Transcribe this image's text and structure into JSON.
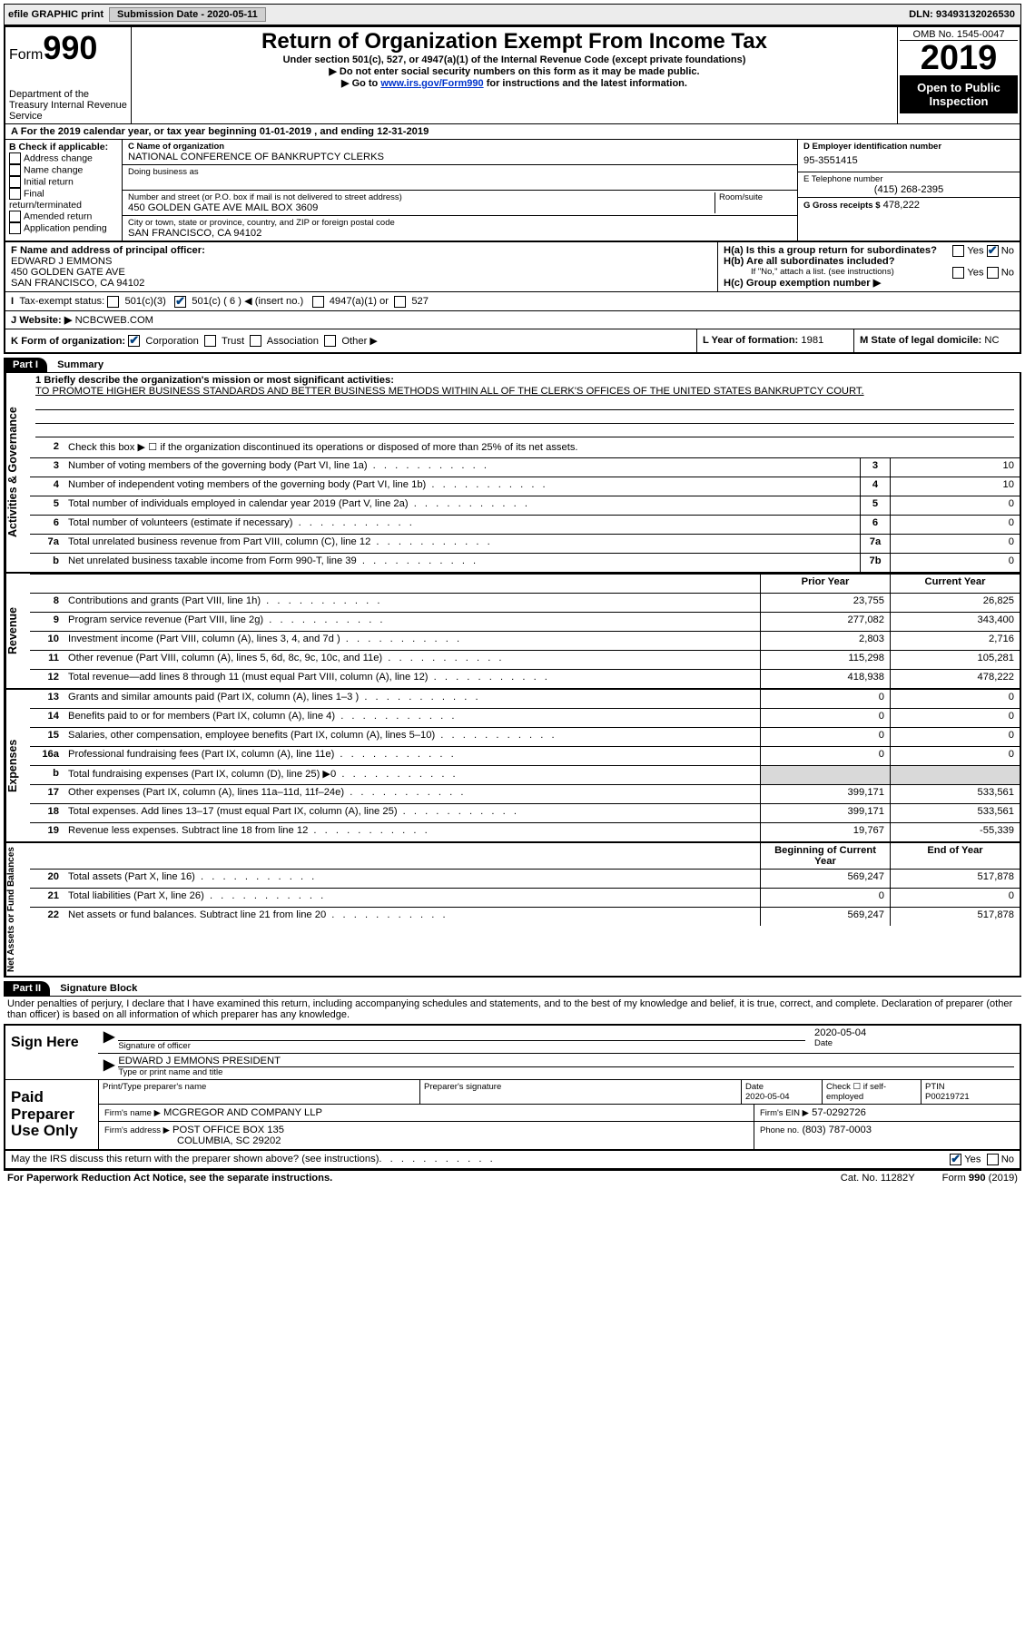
{
  "topbar": {
    "efile": "efile GRAPHIC print",
    "sub_label": "Submission Date",
    "sub_val": "- 2020-05-11",
    "dln": "DLN: 93493132026530"
  },
  "header": {
    "form_word": "Form",
    "form_num": "990",
    "dept": "Department of the Treasury\nInternal Revenue Service",
    "title": "Return of Organization Exempt From Income Tax",
    "sub": "Under section 501(c), 527, or 4947(a)(1) of the Internal Revenue Code (except private foundations)",
    "line2": "▶ Do not enter social security numbers on this form as it may be made public.",
    "line3_pre": "▶ Go to ",
    "line3_link": "www.irs.gov/Form990",
    "line3_post": " for instructions and the latest information.",
    "omb": "OMB No. 1545-0047",
    "year": "2019",
    "open": "Open to Public Inspection"
  },
  "line_a": "For the 2019 calendar year, or tax year beginning 01-01-2019    , and ending 12-31-2019",
  "box_b": {
    "title": "B Check if applicable:",
    "items": [
      "Address change",
      "Name change",
      "Initial return",
      "Final return/terminated",
      "Amended return",
      "Application pending"
    ]
  },
  "box_c": {
    "name_lbl": "C Name of organization",
    "name": "NATIONAL CONFERENCE OF BANKRUPTCY CLERKS",
    "dba_lbl": "Doing business as",
    "addr_lbl": "Number and street (or P.O. box if mail is not delivered to street address)",
    "room_lbl": "Room/suite",
    "addr": "450 GOLDEN GATE AVE MAIL BOX 3609",
    "city_lbl": "City or town, state or province, country, and ZIP or foreign postal code",
    "city": "SAN FRANCISCO, CA  94102"
  },
  "box_d": {
    "ein_lbl": "D Employer identification number",
    "ein": "95-3551415",
    "tel_lbl": "E Telephone number",
    "tel": "(415) 268-2395",
    "gross_lbl": "G Gross receipts $",
    "gross": "478,222"
  },
  "box_f": {
    "lbl": "F Name and address of principal officer:",
    "name": "EDWARD J EMMONS",
    "addr1": "450 GOLDEN GATE AVE",
    "addr2": "SAN FRANCISCO, CA  94102"
  },
  "box_h": {
    "ha": "H(a)  Is this a group return for subordinates?",
    "hb": "H(b)  Are all subordinates included?",
    "hb_note": "If \"No,\" attach a list. (see instructions)",
    "hc": "H(c)  Group exemption number ▶"
  },
  "row_i": {
    "lbl": "Tax-exempt status:",
    "c3": "501(c)(3)",
    "c": "501(c) ( 6 ) ◀ (insert no.)",
    "a1": "4947(a)(1) or",
    "s527": "527"
  },
  "row_j": {
    "lbl": "J   Website: ▶",
    "val": "NCBCWEB.COM"
  },
  "row_k": "K Form of organization:",
  "row_k_items": [
    "Corporation",
    "Trust",
    "Association",
    "Other ▶"
  ],
  "row_l": {
    "lbl": "L Year of formation:",
    "val": "1981"
  },
  "row_m": {
    "lbl": "M State of legal domicile:",
    "val": "NC"
  },
  "part1": {
    "hdr": "Part I",
    "title": "Summary"
  },
  "summary": {
    "line1_lbl": "1  Briefly describe the organization's mission or most significant activities:",
    "mission": "TO PROMOTE HIGHER BUSINESS STANDARDS AND BETTER BUSINESS METHODS WITHIN ALL OF THE CLERK'S OFFICES OF THE UNITED STATES BANKRUPTCY COURT.",
    "line2": "Check this box ▶ ☐ if the organization discontinued its operations or disposed of more than 25% of its net assets.",
    "rows_ag": [
      {
        "n": "3",
        "t": "Number of voting members of the governing body (Part VI, line 1a)",
        "b": "3",
        "v": "10"
      },
      {
        "n": "4",
        "t": "Number of independent voting members of the governing body (Part VI, line 1b)",
        "b": "4",
        "v": "10"
      },
      {
        "n": "5",
        "t": "Total number of individuals employed in calendar year 2019 (Part V, line 2a)",
        "b": "5",
        "v": "0"
      },
      {
        "n": "6",
        "t": "Total number of volunteers (estimate if necessary)",
        "b": "6",
        "v": "0"
      },
      {
        "n": "7a",
        "t": "Total unrelated business revenue from Part VIII, column (C), line 12",
        "b": "7a",
        "v": "0"
      },
      {
        "n": "b",
        "t": "Net unrelated business taxable income from Form 990-T, line 39",
        "b": "7b",
        "v": "0"
      }
    ],
    "col_hdr": {
      "prior": "Prior Year",
      "curr": "Current Year"
    },
    "revenue": [
      {
        "n": "8",
        "t": "Contributions and grants (Part VIII, line 1h)",
        "p": "23,755",
        "c": "26,825"
      },
      {
        "n": "9",
        "t": "Program service revenue (Part VIII, line 2g)",
        "p": "277,082",
        "c": "343,400"
      },
      {
        "n": "10",
        "t": "Investment income (Part VIII, column (A), lines 3, 4, and 7d )",
        "p": "2,803",
        "c": "2,716"
      },
      {
        "n": "11",
        "t": "Other revenue (Part VIII, column (A), lines 5, 6d, 8c, 9c, 10c, and 11e)",
        "p": "115,298",
        "c": "105,281"
      },
      {
        "n": "12",
        "t": "Total revenue—add lines 8 through 11 (must equal Part VIII, column (A), line 12)",
        "p": "418,938",
        "c": "478,222"
      }
    ],
    "expenses": [
      {
        "n": "13",
        "t": "Grants and similar amounts paid (Part IX, column (A), lines 1–3 )",
        "p": "0",
        "c": "0"
      },
      {
        "n": "14",
        "t": "Benefits paid to or for members (Part IX, column (A), line 4)",
        "p": "0",
        "c": "0"
      },
      {
        "n": "15",
        "t": "Salaries, other compensation, employee benefits (Part IX, column (A), lines 5–10)",
        "p": "0",
        "c": "0"
      },
      {
        "n": "16a",
        "t": "Professional fundraising fees (Part IX, column (A), line 11e)",
        "p": "0",
        "c": "0"
      },
      {
        "n": "b",
        "t": "Total fundraising expenses (Part IX, column (D), line 25) ▶0",
        "p": "",
        "c": "",
        "shade": true
      },
      {
        "n": "17",
        "t": "Other expenses (Part IX, column (A), lines 11a–11d, 11f–24e)",
        "p": "399,171",
        "c": "533,561"
      },
      {
        "n": "18",
        "t": "Total expenses. Add lines 13–17 (must equal Part IX, column (A), line 25)",
        "p": "399,171",
        "c": "533,561"
      },
      {
        "n": "19",
        "t": "Revenue less expenses. Subtract line 18 from line 12",
        "p": "19,767",
        "c": "-55,339"
      }
    ],
    "na_hdr": {
      "beg": "Beginning of Current Year",
      "end": "End of Year"
    },
    "netassets": [
      {
        "n": "20",
        "t": "Total assets (Part X, line 16)",
        "p": "569,247",
        "c": "517,878"
      },
      {
        "n": "21",
        "t": "Total liabilities (Part X, line 26)",
        "p": "0",
        "c": "0"
      },
      {
        "n": "22",
        "t": "Net assets or fund balances. Subtract line 21 from line 20",
        "p": "569,247",
        "c": "517,878"
      }
    ]
  },
  "side_labels": {
    "ag": "Activities & Governance",
    "rev": "Revenue",
    "exp": "Expenses",
    "na": "Net Assets or Fund Balances"
  },
  "part2": {
    "hdr": "Part II",
    "title": "Signature Block"
  },
  "penalties": "Under penalties of perjury, I declare that I have examined this return, including accompanying schedules and statements, and to the best of my knowledge and belief, it is true, correct, and complete. Declaration of preparer (other than officer) is based on all information of which preparer has any knowledge.",
  "sign": {
    "here": "Sign Here",
    "sig_lbl": "Signature of officer",
    "date_lbl": "Date",
    "date": "2020-05-04",
    "typed": "EDWARD J EMMONS PRESIDENT",
    "typed_lbl": "Type or print name and title"
  },
  "paid": {
    "lbl": "Paid Preparer Use Only",
    "h1": "Print/Type preparer's name",
    "h2": "Preparer's signature",
    "h3": "Date",
    "h4": "Check ☐ if self-employed",
    "h5": "PTIN",
    "date": "2020-05-04",
    "ptin": "P00219721",
    "firm_lbl": "Firm's name    ▶",
    "firm": "MCGREGOR AND COMPANY LLP",
    "ein_lbl": "Firm's EIN ▶",
    "ein": "57-0292726",
    "addr_lbl": "Firm's address ▶",
    "addr1": "POST OFFICE BOX 135",
    "addr2": "COLUMBIA, SC  29202",
    "phone_lbl": "Phone no.",
    "phone": "(803) 787-0003"
  },
  "discuss": "May the IRS discuss this return with the preparer shown above? (see instructions)",
  "footer": {
    "l": "For Paperwork Reduction Act Notice, see the separate instructions.",
    "m": "Cat. No. 11282Y",
    "r": "Form 990 (2019)"
  }
}
